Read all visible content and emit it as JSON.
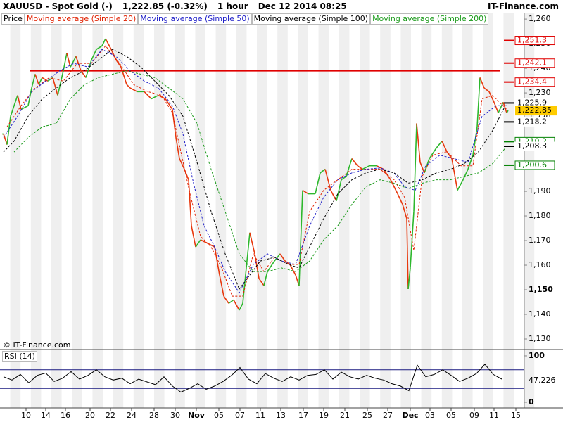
{
  "header": {
    "symbol": "XAUUSD - Spot Gold (-)",
    "quote": "1,222.85 (-0.32%)",
    "interval": "1 hour",
    "timestamp": "Dec 12 2014 08:25",
    "brand": "IT-Finance.com",
    "copyright": "© IT-Finance.com"
  },
  "chart_data": [
    {
      "type": "line",
      "xlim": [
        0,
        745
      ],
      "xticks": [
        {
          "value": 37,
          "label": "10"
        },
        {
          "value": 65,
          "label": "14"
        },
        {
          "value": 93,
          "label": "16"
        },
        {
          "value": 128,
          "label": "20"
        },
        {
          "value": 157,
          "label": "22"
        },
        {
          "value": 187,
          "label": "24"
        },
        {
          "value": 219,
          "label": "28"
        },
        {
          "value": 249,
          "label": "30"
        },
        {
          "value": 279,
          "label": "Nov"
        },
        {
          "value": 311,
          "label": "05"
        },
        {
          "value": 341,
          "label": "07"
        },
        {
          "value": 370,
          "label": "11"
        },
        {
          "value": 399,
          "label": "13"
        },
        {
          "value": 431,
          "label": "17"
        },
        {
          "value": 460,
          "label": "19"
        },
        {
          "value": 490,
          "label": "21"
        },
        {
          "value": 522,
          "label": "25"
        },
        {
          "value": 551,
          "label": "27"
        },
        {
          "value": 583,
          "label": "Dec"
        },
        {
          "value": 611,
          "label": "03"
        },
        {
          "value": 641,
          "label": "05"
        },
        {
          "value": 674,
          "label": "09"
        },
        {
          "value": 702,
          "label": "11"
        },
        {
          "value": 733,
          "label": "15"
        }
      ],
      "ylim": [
        1126,
        1262.6
      ],
      "yticks": [
        {
          "value": 1130,
          "label": "1,130"
        },
        {
          "value": 1140,
          "label": "1,140"
        },
        {
          "value": 1150,
          "label": "1,150"
        },
        {
          "value": 1160,
          "label": "1,160"
        },
        {
          "value": 1170,
          "label": "1,170"
        },
        {
          "value": 1180,
          "label": "1,180"
        },
        {
          "value": 1190,
          "label": "1,190"
        },
        {
          "value": 1200,
          "label": "1,200"
        },
        {
          "value": 1210,
          "label": "1,210"
        },
        {
          "value": 1220,
          "label": "1,220"
        },
        {
          "value": 1230,
          "label": "1,230"
        },
        {
          "value": 1240,
          "label": "1,240"
        },
        {
          "value": 1250,
          "label": "1,250"
        },
        {
          "value": 1260,
          "label": "1,260"
        }
      ],
      "series": [
        {
          "name": "Price",
          "color": "#2db82d",
          "down_color": "#e8380d",
          "x": [
            5,
            10,
            15,
            20,
            25,
            30,
            40,
            45,
            50,
            55,
            60,
            68,
            75,
            82,
            90,
            95,
            100,
            108,
            115,
            122,
            130,
            137,
            145,
            150,
            158,
            165,
            172,
            180,
            185,
            195,
            205,
            215,
            225,
            235,
            245,
            250,
            255,
            262,
            268,
            272,
            278,
            285,
            295,
            305,
            312,
            318,
            325,
            332,
            340,
            345,
            350,
            355,
            362,
            368,
            375,
            380,
            390,
            398,
            405,
            412,
            420,
            425,
            430,
            438,
            448,
            455,
            462,
            470,
            478,
            485,
            492,
            500,
            508,
            515,
            525,
            535,
            545,
            555,
            565,
            572,
            578,
            580,
            583,
            588,
            592,
            597,
            603,
            610,
            620,
            628,
            635,
            642,
            650,
            658,
            665,
            672,
            678,
            682,
            688,
            695,
            702,
            708,
            715,
            720,
            722
          ],
          "values": [
            1213.3,
            1209,
            1220.5,
            1224.8,
            1229,
            1223.3,
            1224.8,
            1232,
            1237.6,
            1233.4,
            1236.2,
            1234.8,
            1236.2,
            1229,
            1239,
            1246.2,
            1240.5,
            1244.8,
            1239,
            1236.2,
            1243.4,
            1247.7,
            1249.1,
            1252,
            1247.7,
            1243.4,
            1240.5,
            1233.4,
            1232,
            1230.5,
            1230.5,
            1227.6,
            1229,
            1227.6,
            1223.3,
            1211.9,
            1203.3,
            1199,
            1194.7,
            1176,
            1167.4,
            1170.3,
            1168.9,
            1167.4,
            1156,
            1147.4,
            1144.5,
            1145.9,
            1141.7,
            1144.5,
            1158.9,
            1173.2,
            1164.6,
            1154.6,
            1151.7,
            1157.4,
            1161.7,
            1164.6,
            1161.7,
            1160.3,
            1156,
            1151.7,
            1190.4,
            1189,
            1189,
            1197.5,
            1199,
            1190.4,
            1186.1,
            1194.7,
            1196.1,
            1203.3,
            1200.4,
            1199,
            1200.4,
            1200.4,
            1199,
            1194.7,
            1189,
            1184.7,
            1178.9,
            1150.3,
            1158.9,
            1181.8,
            1217.6,
            1201.8,
            1197.5,
            1203.3,
            1207.6,
            1210.4,
            1206.1,
            1203.3,
            1190.4,
            1194.7,
            1199,
            1204.7,
            1216.2,
            1236.2,
            1232,
            1230.5,
            1226.2,
            1221.9,
            1226.2,
            1221.9,
            1222.85
          ]
        },
        {
          "name": "Moving average (Simple 20)",
          "color": "#e02000",
          "x": [
            10,
            30,
            50,
            70,
            90,
            110,
            130,
            150,
            170,
            190,
            210,
            230,
            245,
            258,
            270,
            285,
            300,
            315,
            330,
            345,
            360,
            375,
            390,
            410,
            425,
            440,
            460,
            480,
            500,
            520,
            540,
            560,
            575,
            588,
            600,
            615,
            635,
            655,
            672,
            685,
            700,
            720
          ],
          "values": [
            1216.2,
            1224.8,
            1232,
            1236.2,
            1234.8,
            1242,
            1242,
            1249.1,
            1242,
            1233.4,
            1230.5,
            1229,
            1221.9,
            1204.7,
            1189,
            1171.7,
            1167.4,
            1158.9,
            1147.4,
            1147.4,
            1164.6,
            1157.4,
            1163.2,
            1160.3,
            1160.3,
            1181.8,
            1190.4,
            1194.7,
            1199,
            1199,
            1199,
            1194.7,
            1187.5,
            1166,
            1196.1,
            1204.7,
            1206.1,
            1200.4,
            1200.4,
            1227.6,
            1229,
            1223.3
          ]
        },
        {
          "name": "Moving average (Simple 50)",
          "color": "#2020c8",
          "x": [
            5,
            25,
            45,
            65,
            85,
            105,
            125,
            145,
            165,
            185,
            205,
            225,
            245,
            260,
            275,
            290,
            305,
            320,
            340,
            360,
            380,
            400,
            420,
            440,
            460,
            480,
            500,
            520,
            540,
            560,
            575,
            590,
            605,
            625,
            645,
            665,
            685,
            705,
            720
          ],
          "values": [
            1211.9,
            1220.5,
            1230.5,
            1234.8,
            1239,
            1242,
            1240.5,
            1247.7,
            1244.8,
            1239,
            1234.8,
            1232,
            1224.8,
            1213.3,
            1193.3,
            1176,
            1167.4,
            1157.4,
            1148.8,
            1160.3,
            1164.6,
            1161.7,
            1160.3,
            1176,
            1187.6,
            1194.7,
            1197.5,
            1199,
            1199.5,
            1197.5,
            1191.8,
            1190.4,
            1200.4,
            1204.7,
            1203.3,
            1201.8,
            1220.5,
            1224.8,
            1224.8
          ]
        },
        {
          "name": "Moving average (Simple 100)",
          "color": "#000000",
          "x": [
            5,
            20,
            40,
            60,
            80,
            100,
            120,
            140,
            160,
            180,
            200,
            220,
            240,
            260,
            280,
            300,
            320,
            340,
            355,
            370,
            390,
            410,
            425,
            440,
            460,
            480,
            500,
            520,
            540,
            560,
            580,
            600,
            620,
            640,
            660,
            680,
            700,
            718
          ],
          "values": [
            1206,
            1210.4,
            1220.5,
            1227.6,
            1232,
            1236.2,
            1239,
            1243.4,
            1247.7,
            1244.8,
            1240.5,
            1234.8,
            1229,
            1220.5,
            1201.8,
            1181.8,
            1164.6,
            1150.3,
            1156,
            1161.7,
            1163.2,
            1160.3,
            1158.9,
            1167.4,
            1178.9,
            1189,
            1194.7,
            1197.5,
            1199,
            1197.5,
            1193.3,
            1194.7,
            1197.5,
            1199,
            1201.3,
            1206.1,
            1214.7,
            1224.8
          ]
        },
        {
          "name": "Moving average (Simple 200)",
          "color": "#1a9a1a",
          "x": [
            20,
            40,
            60,
            80,
            100,
            120,
            140,
            160,
            180,
            200,
            220,
            240,
            260,
            280,
            300,
            320,
            340,
            360,
            380,
            400,
            420,
            440,
            460,
            480,
            500,
            520,
            540,
            560,
            580,
            600,
            620,
            640,
            660,
            680,
            700,
            718
          ],
          "values": [
            1206,
            1211.9,
            1216.2,
            1217.6,
            1227.6,
            1233.4,
            1236.2,
            1237.6,
            1239,
            1237.6,
            1236.2,
            1232,
            1227.6,
            1217.6,
            1199,
            1181.8,
            1164.6,
            1157.4,
            1157.4,
            1158.9,
            1157.4,
            1161.7,
            1170.3,
            1176,
            1184.7,
            1191.8,
            1194.7,
            1193.3,
            1191.1,
            1193.3,
            1194.7,
            1194.7,
            1196.1,
            1197.5,
            1201.3,
            1207.6
          ]
        }
      ],
      "reference_line": {
        "value": 1239,
        "color": "#e00000",
        "x": [
          42,
          710
        ]
      },
      "price_levels": [
        {
          "value": 1251.3,
          "label": "1,251.3",
          "color": "#e00000"
        },
        {
          "value": 1242.1,
          "label": "1,242.1",
          "color": "#e00000"
        },
        {
          "value": 1234.4,
          "label": "1,234.4",
          "color": "#e00000"
        },
        {
          "value": 1225.9,
          "label": "1,225.9",
          "color": "#000000"
        },
        {
          "value": 1218.2,
          "label": "1,218.2",
          "color": "#000000"
        },
        {
          "value": 1210.2,
          "label": "1,210.2",
          "color": "#008000"
        },
        {
          "value": 1208.3,
          "label": "1,208.3",
          "color": "#000000"
        },
        {
          "value": 1200.6,
          "label": "1,200.6",
          "color": "#008000"
        }
      ],
      "current": {
        "value": 1222.85,
        "label": "1,222.85",
        "color": "#ffcc00"
      }
    },
    {
      "type": "line",
      "title": "RSI (14)",
      "color": "#000000",
      "x": [
        5,
        17,
        29,
        41,
        53,
        65,
        77,
        89,
        101,
        113,
        125,
        137,
        149,
        161,
        173,
        185,
        197,
        209,
        221,
        233,
        245,
        257,
        269,
        281,
        293,
        305,
        317,
        329,
        341,
        353,
        365,
        377,
        389,
        401,
        413,
        425,
        437,
        449,
        461,
        473,
        485,
        497,
        509,
        521,
        533,
        545,
        557,
        569,
        581,
        593,
        605,
        617,
        629,
        641,
        653,
        665,
        677,
        689,
        701,
        713
      ],
      "values": [
        55,
        48,
        60,
        42,
        58,
        63,
        45,
        52,
        66,
        50,
        58,
        70,
        55,
        48,
        52,
        40,
        50,
        44,
        38,
        55,
        35,
        22,
        30,
        40,
        28,
        35,
        45,
        58,
        75,
        50,
        40,
        62,
        52,
        45,
        55,
        48,
        58,
        60,
        70,
        50,
        65,
        55,
        50,
        58,
        52,
        48,
        40,
        35,
        25,
        80,
        55,
        60,
        70,
        58,
        45,
        52,
        62,
        82,
        60,
        50
      ],
      "xlim": [
        0,
        745
      ],
      "ylim": [
        -12.1,
        113.6
      ],
      "yticks": [
        0,
        100
      ],
      "levels": [
        30,
        70
      ],
      "level_color": "#1a1a80",
      "last_value": 47.226
    }
  ]
}
